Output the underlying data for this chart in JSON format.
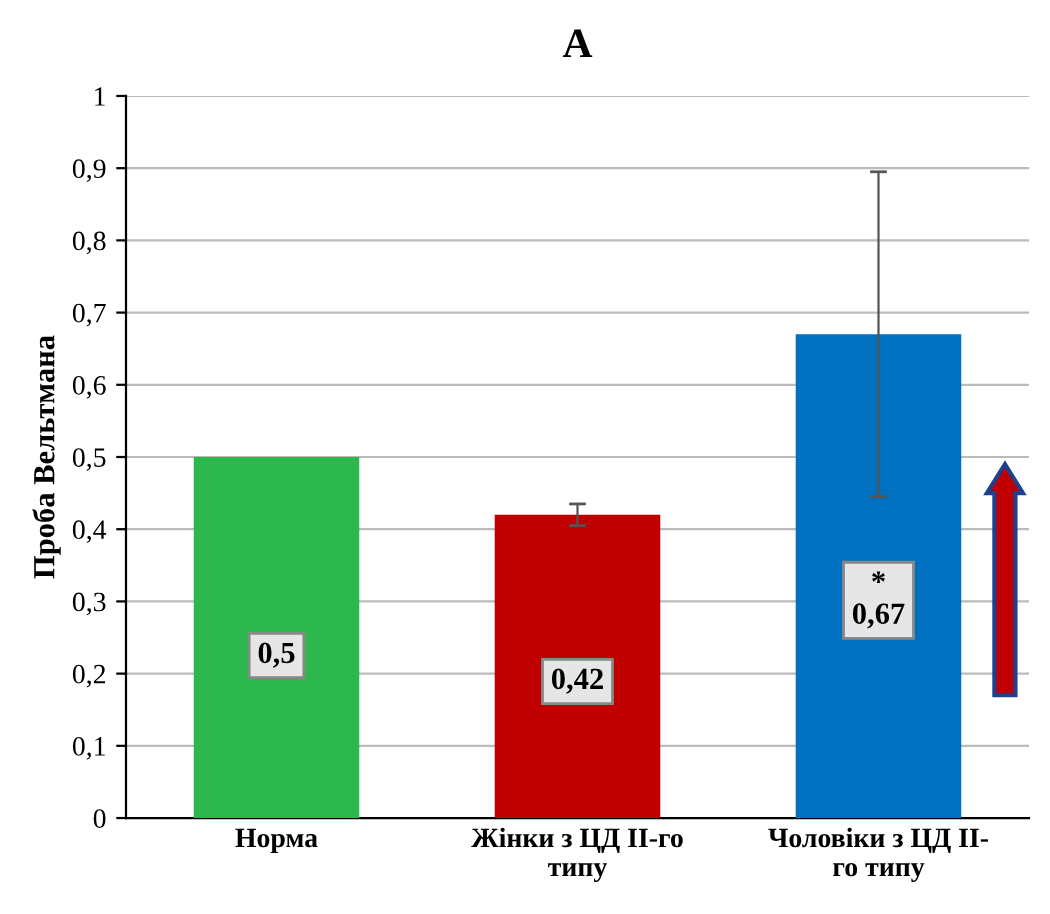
{
  "chart_data": {
    "type": "bar",
    "title": "А",
    "ylabel": "Проба Вельтмана",
    "categories": [
      "Норма",
      "Жінки з ЦД ІІ-го\nтипу",
      "Чоловіки з ЦД ІІ-\nго типу"
    ],
    "values": [
      0.5,
      0.42,
      0.67
    ],
    "colors": [
      "#2db84d",
      "#c00000",
      "#0070c0"
    ],
    "errors": [
      null,
      0.015,
      0.225
    ],
    "value_labels": [
      "0,5",
      "0,42",
      "*\n0,67"
    ],
    "ylim": [
      0,
      1
    ],
    "yticks": [
      0,
      {
        "value": 0.1,
        "label": "0,1"
      },
      {
        "value": 0.2,
        "label": "0,2"
      },
      {
        "value": 0.3,
        "label": "0,3"
      },
      {
        "value": 0.4,
        "label": "0,4"
      },
      {
        "value": 0.5,
        "label": "0,5"
      },
      {
        "value": 0.6,
        "label": "0,6"
      },
      {
        "value": 0.7,
        "label": "0,7"
      },
      {
        "value": 0.8,
        "label": "0,8"
      },
      {
        "value": 0.9,
        "label": "0,9"
      },
      1
    ],
    "grid": "y",
    "legend": false
  }
}
